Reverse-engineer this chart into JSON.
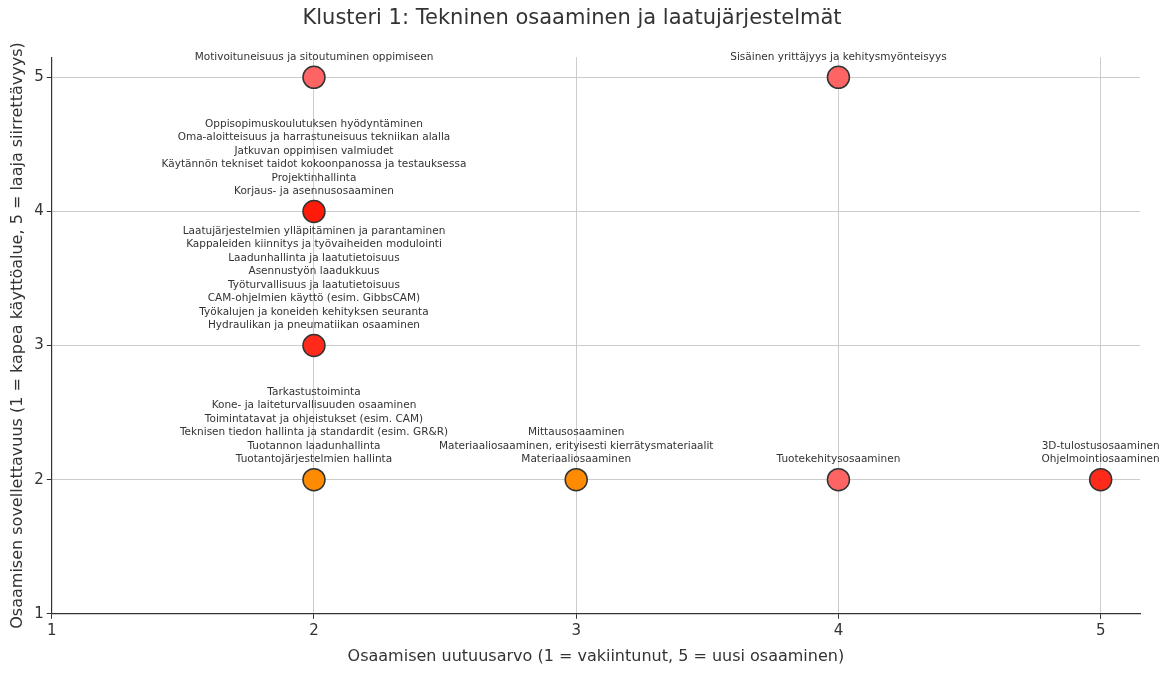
{
  "chart_data": {
    "type": "scatter",
    "title": "Klusteri 1: Tekninen osaaminen ja laatujärjestelmät",
    "xlabel": "Osaamisen uutuusarvo (1 = vakiintunut, 5 = uusi osaaminen)",
    "ylabel": "Osaamisen sovellettavuus (1 = kapea käyttöalue, 5 = laaja siirrettävyys)",
    "x": [
      2,
      4,
      2,
      2,
      2,
      3,
      4,
      5
    ],
    "values": [
      5,
      5,
      4,
      3,
      2,
      2,
      2,
      2
    ],
    "colors": [
      "#ff6464",
      "#ff6464",
      "#ff1a0a",
      "#ff2a1a",
      "#ff8c00",
      "#ff8c00",
      "#ff6464",
      "#ff2a1a"
    ],
    "xlim": [
      1,
      5.15
    ],
    "ylim": [
      1,
      5.15
    ],
    "xticks": [
      1,
      2,
      3,
      4,
      5
    ],
    "yticks": [
      1,
      2,
      3,
      4,
      5
    ],
    "grid": true,
    "marker": "circle",
    "annotations": [
      {
        "text": "Motivoituneisuus ja sitoutuminen oppimiseen",
        "x": 2,
        "y": 5
      },
      "Oppisopimuskoulutuksen hyödyntäminen",
      "Oma-aloitteisuus ja harrastuneisuus tekniikan alalla",
      "Jatkuvan oppimisen valmiudet",
      "Käytännön tekniset taidot kokoonpanossa ja testauksessa",
      "Projektinhallinta",
      {
        "text": "Korjaus- ja asennusosaaminen",
        "x": 2,
        "y": 4
      },
      "Laatujärjestelmien ylläpitäminen ja parantaminen",
      "Kappaleiden kiinnitys ja työvaiheiden modulointi",
      "Laadunhallinta ja laatutietoisuus",
      "Asennustyön laadukkuus",
      "Työturvallisuus ja laatutietoisuus",
      "CAM-ohjelmien käyttö (esim. GibbsCAM)",
      "Työkalujen ja koneiden kehityksen seuranta",
      {
        "text": "Hydraulikan ja pneumatiikan osaaminen",
        "x": 2,
        "y": 3
      },
      "Tarkastustoiminta",
      "Kone- ja laiteturvallisuuden osaaminen",
      "Toimintatavat ja ohjeistukset (esim. CAM)",
      "Teknisen tiedon hallinta ja standardit (esim. GR&R)",
      "Tuotannon laadunhallinta",
      {
        "text": "Tuotantojärjestelmien hallinta",
        "x": 2,
        "y": 2
      },
      "Mittausosaaminen",
      "Materiaaliosaaminen, erityisesti kierrätysmateriaalit",
      {
        "text": "Materiaaliosaaminen",
        "x": 3,
        "y": 2
      },
      {
        "text": "Sisäinen yrittäjyys ja kehitysmyönteisyys",
        "x": 4,
        "y": 5
      },
      {
        "text": "Tuotekehitysosaaminen",
        "x": 4,
        "y": 2
      },
      "3D-tulostusosaaminen",
      {
        "text": "Ohjelmointiosaaminen",
        "x": 5,
        "y": 2
      }
    ]
  }
}
